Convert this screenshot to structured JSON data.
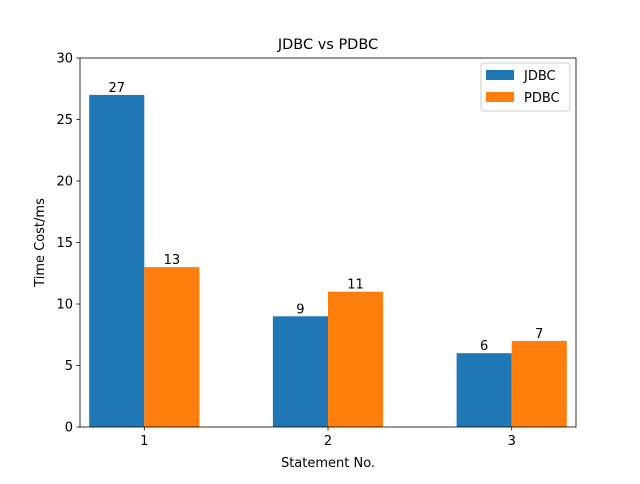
{
  "chart_data": {
    "type": "bar",
    "title": "JDBC vs PDBC",
    "xlabel": "Statement No.",
    "ylabel": "Time Cost/ms",
    "categories": [
      "1",
      "2",
      "3"
    ],
    "series": [
      {
        "name": "JDBC",
        "color": "#1f77b4",
        "values": [
          27,
          9,
          6
        ]
      },
      {
        "name": "PDBC",
        "color": "#ff7f0e",
        "values": [
          13,
          11,
          7
        ]
      }
    ],
    "ylim": [
      0,
      30
    ],
    "yticks": [
      0,
      5,
      10,
      15,
      20,
      25,
      30
    ],
    "data_labels": true,
    "grid": false,
    "legend_position": "top-right"
  }
}
